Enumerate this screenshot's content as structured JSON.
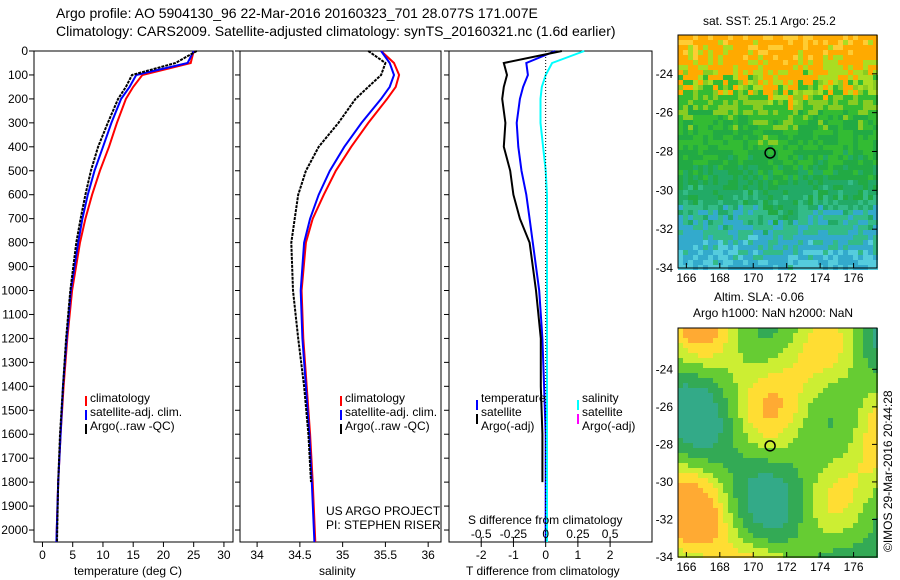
{
  "header": {
    "line1": "Argo profile: AO 5904130_96 22-Mar-2016 20160323_701 28.077S 171.007E",
    "line2": "Climatology: CARS2009. Satellite-adjusted climatology: synTS_20160321.nc (1.6d earlier)"
  },
  "credits": {
    "project": "US ARGO PROJECT",
    "pi": "PI: STEPHEN RISER",
    "imos": "©IMOS 29-Mar-2016 20:44:28"
  },
  "colors": {
    "climatology": "#ff0000",
    "satellite": "#0000ff",
    "argo": "#000000",
    "sal_sat": "#00ffff",
    "sal_argo": "#ff00ff"
  },
  "chart_data": [
    {
      "type": "line",
      "title": "",
      "xlabel": "temperature (deg C)",
      "ylabel": "",
      "xlim": [
        -1.4,
        31.5
      ],
      "ylim": [
        2050,
        0
      ],
      "xticks": [
        0,
        5,
        10,
        15,
        20,
        25,
        30
      ],
      "yticks": [
        0,
        100,
        200,
        300,
        400,
        500,
        600,
        700,
        800,
        900,
        1000,
        1100,
        1200,
        1300,
        1400,
        1500,
        1600,
        1700,
        1800,
        1900,
        2000
      ],
      "legend": [
        "climatology",
        "satellite-adj. clim.",
        "Argo(..raw -QC)"
      ],
      "depth": [
        0,
        50,
        100,
        150,
        200,
        300,
        400,
        500,
        600,
        700,
        800,
        1000,
        1200,
        1400,
        1600,
        1800,
        2050
      ],
      "series": [
        {
          "name": "climatology",
          "values": [
            25,
            24.5,
            16.5,
            15,
            13.8,
            12.3,
            11,
            9.5,
            8.2,
            7.1,
            6.2,
            4.9,
            4.1,
            3.5,
            3.0,
            2.6,
            2.3
          ]
        },
        {
          "name": "satellite-adj. clim.",
          "values": [
            25,
            24,
            15.5,
            14.4,
            13,
            11.4,
            10,
            8.6,
            7.5,
            6.6,
            5.9,
            4.7,
            4.0,
            3.4,
            3.0,
            2.6,
            2.3
          ]
        },
        {
          "name": "Argo(..raw -QC)",
          "values": [
            25.5,
            22,
            14.8,
            13.8,
            12.5,
            10.8,
            9.2,
            8,
            7.1,
            6.3,
            5.6,
            4.6,
            3.9,
            3.4,
            2.9,
            2.6,
            2.4
          ]
        }
      ]
    },
    {
      "type": "line",
      "xlabel": "salinity",
      "xlim": [
        33.8,
        36.15
      ],
      "ylim": [
        2050,
        0
      ],
      "xticks": [
        34,
        34.5,
        35,
        35.5,
        36
      ],
      "legend": [
        "climatology",
        "satellite-adj. clim.",
        "Argo(..raw -QC)"
      ],
      "depth": [
        0,
        50,
        100,
        150,
        200,
        300,
        400,
        500,
        600,
        700,
        800,
        1000,
        1200,
        1400,
        1600,
        1800,
        2050
      ],
      "series": [
        {
          "name": "climatology",
          "values": [
            35.45,
            35.6,
            35.66,
            35.62,
            35.52,
            35.3,
            35.1,
            34.92,
            34.78,
            34.65,
            34.57,
            34.52,
            34.54,
            34.58,
            34.62,
            34.65,
            34.68
          ]
        },
        {
          "name": "satellite-adj. clim.",
          "values": [
            35.45,
            35.55,
            35.6,
            35.55,
            35.45,
            35.22,
            35.02,
            34.85,
            34.72,
            34.62,
            34.55,
            34.51,
            34.53,
            34.57,
            34.61,
            34.64,
            34.67
          ]
        },
        {
          "name": "Argo(..raw -QC)",
          "values": [
            35.3,
            35.5,
            35.45,
            35.3,
            35.15,
            34.95,
            34.72,
            34.57,
            34.48,
            34.44,
            34.4,
            34.42,
            34.48,
            34.55,
            34.6,
            34.63,
            null
          ]
        }
      ]
    },
    {
      "type": "line",
      "xlabel": "T difference from climatology",
      "x2label": "S difference from climatology",
      "xlim": [
        -3,
        3.3
      ],
      "ylim": [
        2050,
        0
      ],
      "xticks": [
        -2,
        -1,
        0,
        1,
        2
      ],
      "x2ticks": [
        -0.5,
        -0.25,
        0,
        0.25,
        0.5
      ],
      "legend_t": {
        "title": "temperature",
        "items": [
          "satellite",
          "Argo(-adj)"
        ]
      },
      "legend_s": {
        "title": "salinity",
        "items": [
          "satellite",
          "Argo(-adj)"
        ]
      },
      "depth": [
        0,
        50,
        100,
        150,
        200,
        300,
        400,
        500,
        600,
        700,
        800,
        1000,
        1200,
        1400,
        1600,
        1800,
        2050
      ],
      "series": [
        {
          "name": "T satellite",
          "values": [
            0.3,
            -0.6,
            -0.55,
            -0.7,
            -0.8,
            -0.9,
            -0.85,
            -0.75,
            -0.6,
            -0.5,
            -0.4,
            -0.2,
            -0.1,
            -0.05,
            0,
            0,
            0
          ]
        },
        {
          "name": "T Argo(-adj)",
          "values": [
            0.5,
            -1.3,
            -1.2,
            -1.3,
            -1.35,
            -1.25,
            -1.3,
            -1.1,
            -1.0,
            -0.8,
            -0.5,
            -0.3,
            -0.15,
            -0.15,
            -0.1,
            -0.1,
            null
          ]
        },
        {
          "name": "S satellite",
          "values": [
            0.3,
            0.05,
            0,
            -0.03,
            -0.04,
            -0.04,
            -0.02,
            0,
            0.01,
            0.01,
            0.01,
            0.01,
            0.01,
            0.01,
            0.01,
            0.01,
            0.01
          ]
        }
      ]
    },
    {
      "type": "heatmap",
      "title": "sat. SST: 25.1  Argo: 25.2",
      "xticks": [
        166,
        168,
        170,
        172,
        174,
        176
      ],
      "yticks": [
        -24,
        -26,
        -28,
        -30,
        -32,
        -34
      ],
      "xlim": [
        165.5,
        177.4
      ],
      "ylim": [
        -34,
        -22
      ]
    },
    {
      "type": "heatmap",
      "title": "Altim. SLA: -0.06",
      "subtitle": "Argo h1000: NaN h2000: NaN",
      "xticks": [
        166,
        168,
        170,
        172,
        174,
        176
      ],
      "yticks": [
        -24,
        -26,
        -28,
        -30,
        -32,
        -34
      ],
      "xlim": [
        165.5,
        177.4
      ],
      "ylim": [
        -34,
        -21.8
      ]
    }
  ]
}
